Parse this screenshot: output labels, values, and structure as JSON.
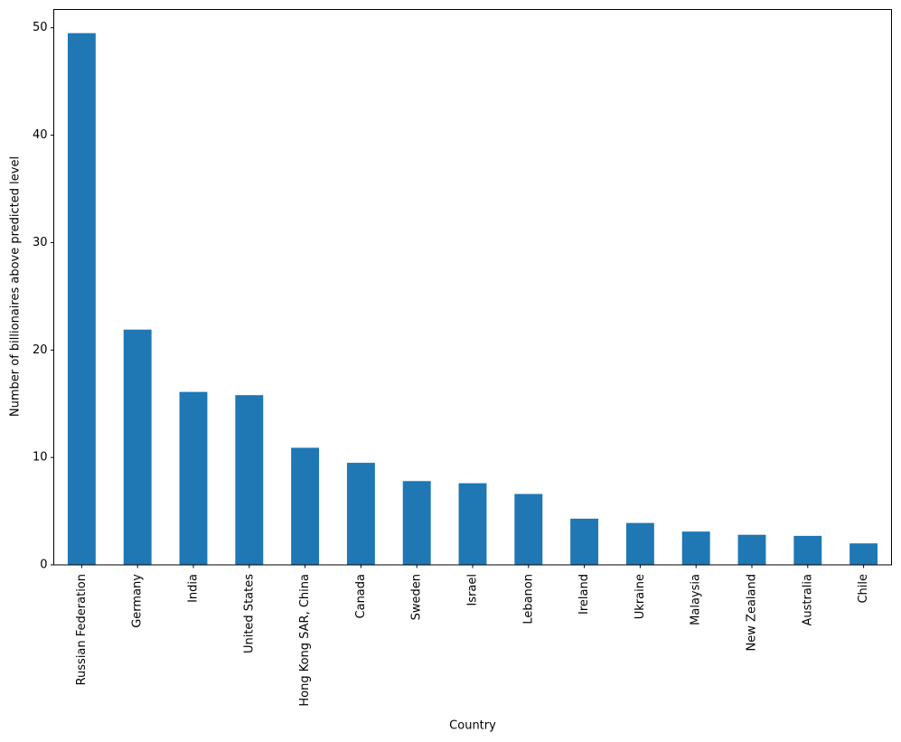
{
  "figure": {
    "background": "#ffffff"
  },
  "chart_data": {
    "type": "bar",
    "title": "",
    "xlabel": "Country",
    "ylabel": "Number of billionaires above predicted level",
    "categories": [
      "Russian Federation",
      "Germany",
      "India",
      "United States",
      "Hong Kong SAR, China",
      "Canada",
      "Sweden",
      "Israel",
      "Lebanon",
      "Ireland",
      "Ukraine",
      "Malaysia",
      "New Zealand",
      "Australia",
      "Chile"
    ],
    "values": [
      49.5,
      21.9,
      16.1,
      15.8,
      10.9,
      9.5,
      7.8,
      7.6,
      6.6,
      4.3,
      3.9,
      3.1,
      2.8,
      2.7,
      2.0
    ],
    "yticks": [
      0,
      10,
      20,
      30,
      40,
      50
    ],
    "ylim": [
      0,
      51.7
    ],
    "grid": false,
    "legend_position": "none",
    "bar_color": "#1f77b4",
    "axis_color": "#000000",
    "text_color": "#000000",
    "bar_width_fraction": 0.5,
    "x_tick_rotation": -90
  }
}
